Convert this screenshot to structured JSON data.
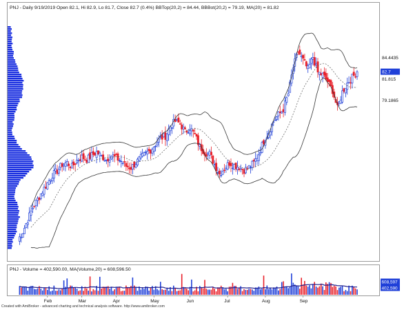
{
  "price_panel": {
    "legend": "PNJ - Daily 9/19/2019 Open 82.1, Hi 82.9, Lo 81.7, Close 82.7 (0.4%) BBTop(20,2) = 84.44, BBBot(20,2) = 79.19, MA(20) = 81.82"
  },
  "volume_panel": {
    "legend": "PNJ - Volume = 402,590.00, MA(Volume,20) = 608,596.50"
  },
  "footer": {
    "credit": "Created with AmiBroker - advanced charting and technical analysis software. http://www.amibroker.com"
  },
  "colors": {
    "up": "#1f3fd8",
    "down": "#e8202a",
    "band": "#333333",
    "ma": "#555555",
    "volume_ma": "#1c1c8c",
    "profile": "#1a2fe0",
    "accent_label_bg": "#1f3fd8"
  },
  "chart_data": [
    {
      "type": "candlestick",
      "title": "PNJ - Daily 9/19/2019 Open 82.1, Hi 82.9, Lo 81.7, Close 82.7 (0.4%) BBTop(20,2) = 84.44, BBBot(20,2) = 79.19, MA(20) = 81.82",
      "x_ticks": [
        "Feb",
        "Mar",
        "Apr",
        "May",
        "Jun",
        "Jul",
        "Aug",
        "Sep"
      ],
      "last_bar": {
        "open": 82.1,
        "high": 82.9,
        "low": 81.7,
        "close": 82.7,
        "change_pct": 0.4
      },
      "axis_labels": [
        {
          "text": "84.4435",
          "value": 84.4435,
          "style": "plain"
        },
        {
          "text": "82.7",
          "value": 82.7,
          "style": "highlight"
        },
        {
          "text": "81.815",
          "value": 81.815,
          "style": "plain"
        },
        {
          "text": "79.1865",
          "value": 79.1865,
          "style": "plain"
        }
      ],
      "series": [
        {
          "name": "BBTop(20,2)",
          "last": 84.44
        },
        {
          "name": "BBBot(20,2)",
          "last": 79.19
        },
        {
          "name": "MA(20)",
          "last": 81.82
        }
      ],
      "close_path": [
        [
          0,
          62
        ],
        [
          3,
          63
        ],
        [
          6,
          64.5
        ],
        [
          9,
          66
        ],
        [
          12,
          67
        ],
        [
          15,
          68
        ],
        [
          18,
          69
        ],
        [
          21,
          70
        ],
        [
          24,
          70.5
        ],
        [
          27,
          71.3
        ],
        [
          30,
          71.5
        ],
        [
          33,
          71.0
        ],
        [
          36,
          71.8
        ],
        [
          39,
          72.2
        ],
        [
          42,
          71.9
        ],
        [
          45,
          72.4
        ],
        [
          48,
          72.8
        ],
        [
          51,
          72.3
        ],
        [
          54,
          71.9
        ],
        [
          57,
          72.4
        ],
        [
          60,
          72.1
        ],
        [
          63,
          71.7
        ],
        [
          66,
          71.1
        ],
        [
          69,
          70.9
        ],
        [
          72,
          71.5
        ],
        [
          75,
          72.1
        ],
        [
          78,
          72.6
        ],
        [
          81,
          73.1
        ],
        [
          84,
          73.8
        ],
        [
          87,
          74.5
        ],
        [
          90,
          74.8
        ],
        [
          93,
          76.0
        ],
        [
          96,
          76.6
        ],
        [
          99,
          76.3
        ],
        [
          102,
          75.3
        ],
        [
          105,
          75.8
        ],
        [
          108,
          74.9
        ],
        [
          111,
          73.5
        ],
        [
          114,
          72.8
        ],
        [
          117,
          72.6
        ],
        [
          120,
          71.3
        ],
        [
          123,
          70.1
        ],
        [
          126,
          70.8
        ],
        [
          129,
          71.5
        ],
        [
          132,
          71.2
        ],
        [
          135,
          71.0
        ],
        [
          138,
          70.6
        ],
        [
          141,
          70.9
        ],
        [
          144,
          71.5
        ],
        [
          147,
          72.6
        ],
        [
          150,
          74.2
        ],
        [
          153,
          75.3
        ],
        [
          156,
          76.6
        ],
        [
          159,
          77.4
        ],
        [
          162,
          78.1
        ],
        [
          165,
          80.0
        ],
        [
          168,
          83.2
        ],
        [
          171,
          85.2
        ],
        [
          174,
          84.1
        ],
        [
          177,
          83.0
        ],
        [
          180,
          84.5
        ],
        [
          183,
          82.6
        ],
        [
          186,
          82.3
        ],
        [
          189,
          81.5
        ],
        [
          192,
          80.4
        ],
        [
          195,
          78.2
        ],
        [
          198,
          80.2
        ],
        [
          201,
          81.3
        ],
        [
          204,
          82.0
        ],
        [
          207,
          82.7
        ]
      ]
    },
    {
      "type": "bar",
      "title": "PNJ - Volume = 402,590.00, MA(Volume,20) = 608,596.50",
      "series": [
        {
          "name": "Volume",
          "last": 402590.0
        },
        {
          "name": "MA(Volume,20)",
          "last": 608596.5
        }
      ],
      "axis_labels": [
        {
          "text": "608,597",
          "value": 608597
        },
        {
          "text": "402,590",
          "value": 402590
        }
      ]
    }
  ]
}
